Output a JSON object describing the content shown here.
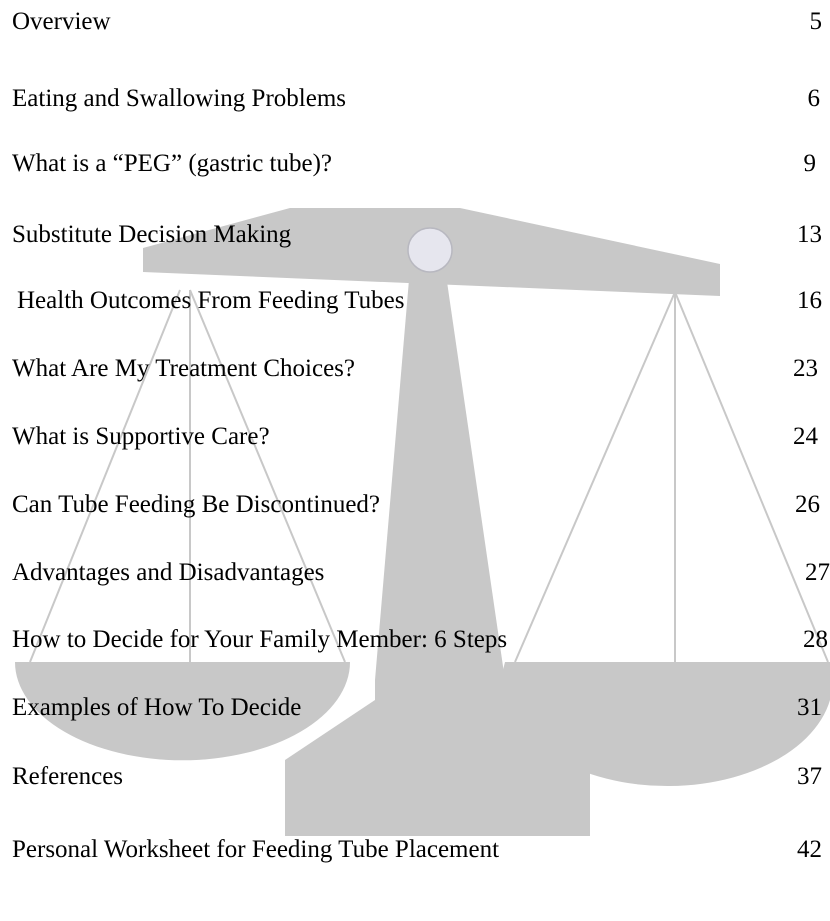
{
  "toc": {
    "entries": [
      {
        "title": "Overview",
        "page": 5
      },
      {
        "title": "Eating and Swallowing Problems",
        "page": 6
      },
      {
        "title": "What is a “PEG” (gastric tube)?",
        "page": 9
      },
      {
        "title": "Substitute Decision Making",
        "page": 13
      },
      {
        "title": "Health Outcomes From Feeding Tubes",
        "page": 16
      },
      {
        "title": "What Are My Treatment Choices?",
        "page": 23
      },
      {
        "title": "What is Supportive Care?",
        "page": 24
      },
      {
        "title": "Can Tube Feeding Be Discontinued?",
        "page": 26
      },
      {
        "title": "Advantages and Disadvantages",
        "page": 27
      },
      {
        "title": "How to Decide for Your Family Member: 6 Steps",
        "page": 28
      },
      {
        "title": "Examples of How To Decide",
        "page": 31
      },
      {
        "title": "References",
        "page": 37
      },
      {
        "title": "Personal Worksheet for Feeding Tube Placement",
        "page": 42
      }
    ]
  }
}
